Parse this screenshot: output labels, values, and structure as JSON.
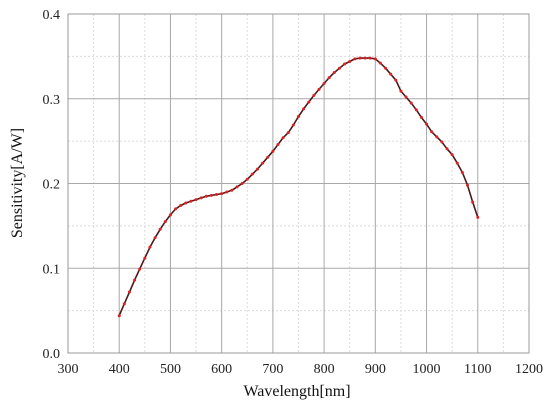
{
  "chart_data": {
    "type": "line",
    "title": "",
    "xlabel": "Wavelength[nm]",
    "ylabel": "Sensitivity[A/W]",
    "xlim": [
      300,
      1200
    ],
    "ylim": [
      0,
      0.4
    ],
    "x_ticks": [
      "300",
      "400",
      "500",
      "600",
      "700",
      "800",
      "900",
      "1000",
      "1100",
      "1200"
    ],
    "y_ticks": [
      "0.0",
      "0.1",
      "0.2",
      "0.3",
      "0.4"
    ],
    "x_tick_values": [
      300,
      400,
      500,
      600,
      700,
      800,
      900,
      1000,
      1100,
      1200
    ],
    "y_tick_values": [
      0.0,
      0.1,
      0.2,
      0.3,
      0.4
    ],
    "grid": true,
    "minor_grid": true,
    "line_color": "#4a1a1a",
    "marker_color": "#e02020",
    "series": [
      {
        "x": [
          400,
          410,
          420,
          430,
          440,
          450,
          460,
          470,
          480,
          490,
          500,
          510,
          520,
          530,
          540,
          550,
          560,
          570,
          580,
          590,
          600,
          610,
          620,
          630,
          640,
          650,
          660,
          670,
          680,
          690,
          700,
          710,
          720,
          730,
          740,
          750,
          760,
          770,
          780,
          790,
          800,
          810,
          820,
          830,
          840,
          850,
          860,
          870,
          880,
          890,
          900,
          910,
          920,
          930,
          940,
          950,
          960,
          970,
          980,
          990,
          1000,
          1010,
          1020,
          1030,
          1040,
          1050,
          1060,
          1070,
          1080,
          1090,
          1100
        ],
        "y": [
          0.044,
          0.058,
          0.072,
          0.086,
          0.099,
          0.112,
          0.125,
          0.136,
          0.146,
          0.155,
          0.163,
          0.17,
          0.174,
          0.177,
          0.179,
          0.181,
          0.183,
          0.185,
          0.186,
          0.187,
          0.188,
          0.19,
          0.192,
          0.196,
          0.2,
          0.205,
          0.211,
          0.217,
          0.224,
          0.231,
          0.238,
          0.246,
          0.254,
          0.26,
          0.269,
          0.279,
          0.288,
          0.296,
          0.304,
          0.311,
          0.318,
          0.325,
          0.331,
          0.336,
          0.341,
          0.344,
          0.347,
          0.348,
          0.348,
          0.348,
          0.347,
          0.342,
          0.336,
          0.329,
          0.322,
          0.309,
          0.302,
          0.295,
          0.287,
          0.278,
          0.27,
          0.261,
          0.255,
          0.249,
          0.241,
          0.234,
          0.224,
          0.213,
          0.198,
          0.178,
          0.16
        ]
      }
    ]
  }
}
